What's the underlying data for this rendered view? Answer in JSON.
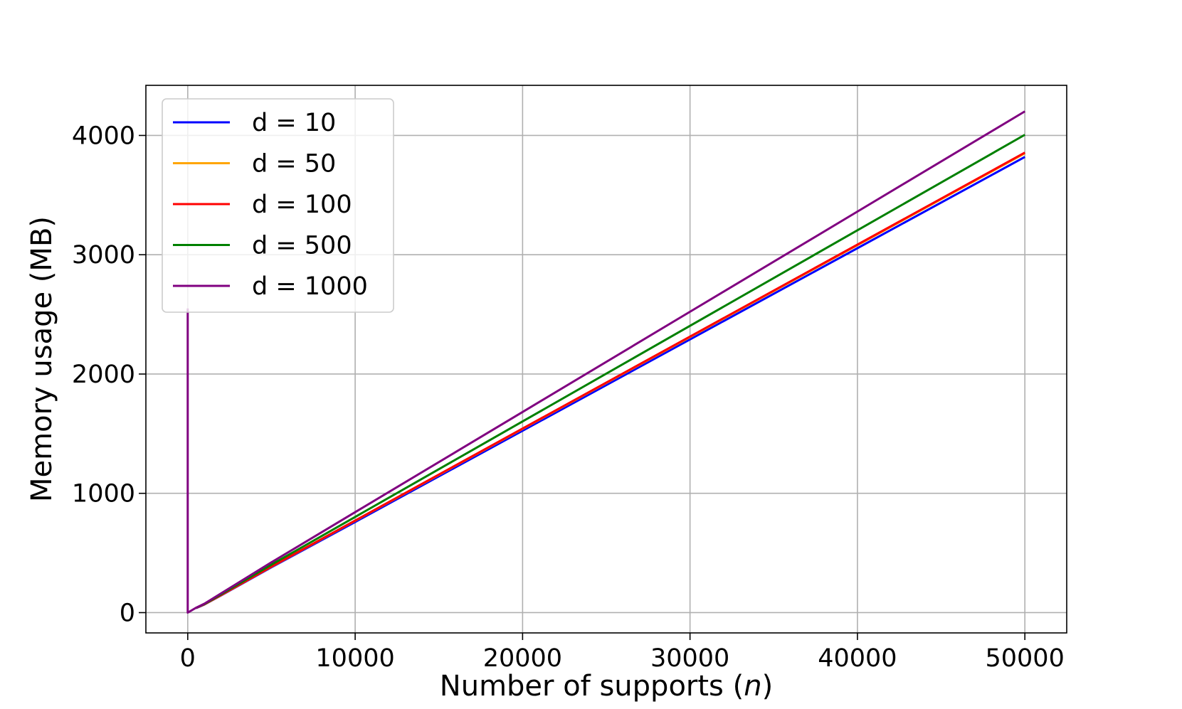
{
  "chart_data": {
    "type": "line",
    "title": "",
    "xlabel": "Number of supports",
    "xlabel_var": "n",
    "ylabel": "Memory usage (MB)",
    "xlim": [
      -2500,
      52500
    ],
    "ylim": [
      -170,
      4420
    ],
    "xticks": [
      0,
      10000,
      20000,
      30000,
      40000,
      50000
    ],
    "yticks": [
      0,
      1000,
      2000,
      3000,
      4000
    ],
    "grid": true,
    "legend_position": "top-left",
    "x": [
      500,
      1000,
      2000,
      5000,
      10000,
      20000,
      30000,
      40000,
      50000
    ],
    "series": [
      {
        "name": "d = 10",
        "color": "#0000ff",
        "values": [
          38,
          68,
          145,
          380,
          760,
          1525,
          2290,
          3055,
          3820
        ],
        "spike": null
      },
      {
        "name": "d = 50",
        "color": "#ffa500",
        "values": [
          39,
          69,
          147,
          385,
          770,
          1540,
          2310,
          3080,
          3850
        ],
        "spike": null
      },
      {
        "name": "d = 100",
        "color": "#ff0000",
        "values": [
          39,
          70,
          148,
          386,
          772,
          1543,
          2314,
          3085,
          3856
        ],
        "spike": null
      },
      {
        "name": "d = 500",
        "color": "#008000",
        "values": [
          40,
          72,
          154,
          402,
          802,
          1603,
          2404,
          3205,
          4006
        ],
        "spike": null
      },
      {
        "name": "d = 1000",
        "color": "#800080",
        "values": [
          41,
          75,
          162,
          422,
          842,
          1682,
          2522,
          3362,
          4202
        ],
        "spike": {
          "x": 0,
          "y": 2550
        }
      }
    ]
  }
}
